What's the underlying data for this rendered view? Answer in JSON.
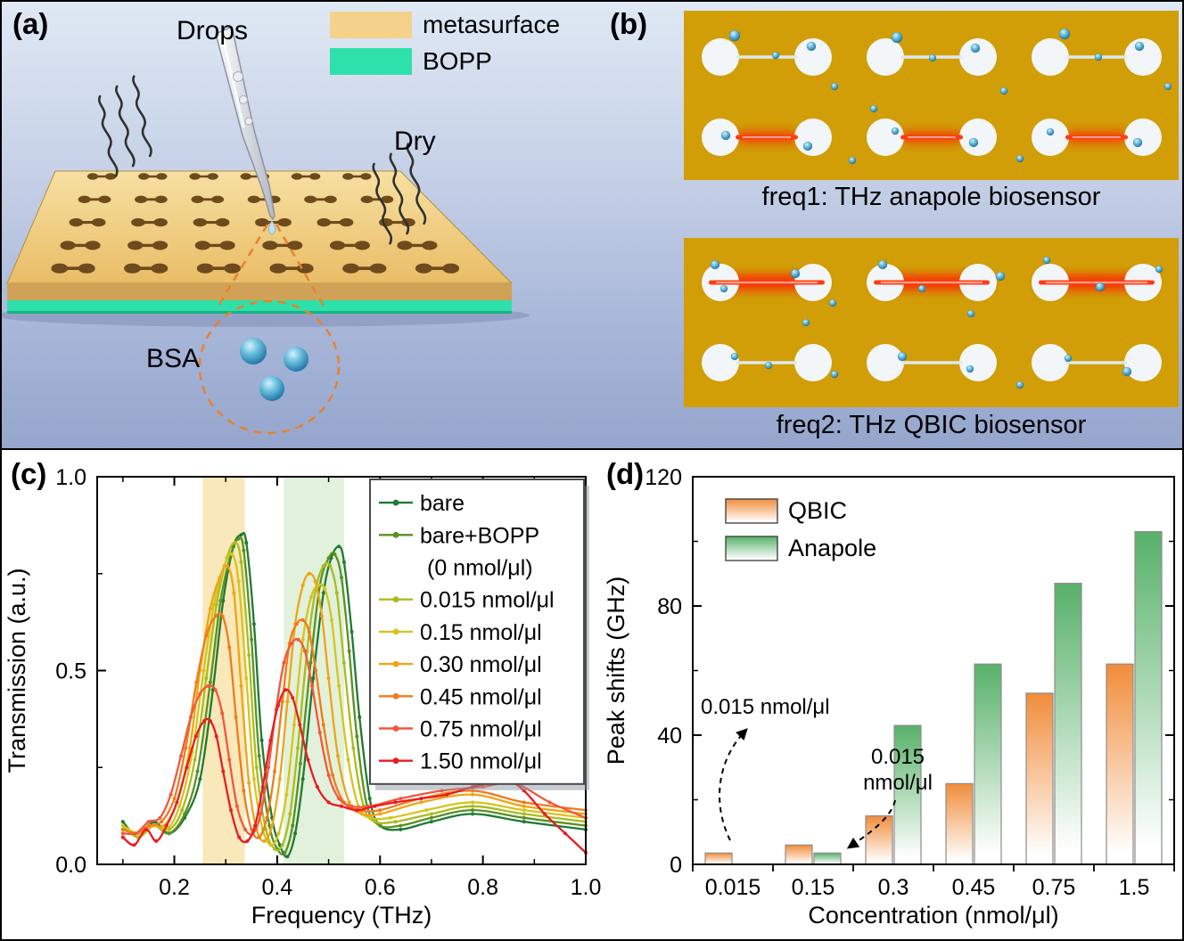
{
  "panel_a": {
    "label": "(a)",
    "drops": "Drops",
    "dry": "Dry",
    "bsa": "BSA",
    "legend": [
      {
        "label": "metasurface",
        "color": "#f4d28c"
      },
      {
        "label": "BOPP",
        "color": "#2ee0aa"
      }
    ]
  },
  "panel_b": {
    "label": "(b)",
    "caption_anapole": "freq1: THz anapole biosensor",
    "caption_qbic": "freq2: THz QBIC biosensor"
  },
  "panel_c": {
    "label": "(c)"
  },
  "panel_d": {
    "label": "(d)"
  },
  "chart_data": [
    {
      "id": "transmission-spectra",
      "type": "line",
      "xlabel": "Frequency (THz)",
      "ylabel": "Transmission (a.u.)",
      "xlim": [
        0.05,
        1.0
      ],
      "ylim": [
        0.0,
        1.0
      ],
      "xticks": [
        0.2,
        0.4,
        0.6,
        0.8,
        1.0
      ],
      "xtick_labels": [
        "0.2",
        "0.4",
        "0.6",
        "0.8",
        "1.0"
      ],
      "xminor": [
        0.1,
        0.3,
        0.5,
        0.7,
        0.9
      ],
      "yticks": [
        0.0,
        0.5,
        1.0
      ],
      "ytick_labels": [
        "0.0",
        "0.5",
        "1.0"
      ],
      "yminor": [
        0.25,
        0.75
      ],
      "bands": [
        {
          "x0": 0.255,
          "x1": 0.337,
          "color": "#f5d98a",
          "opacity": 0.6
        },
        {
          "x0": 0.413,
          "x1": 0.53,
          "color": "#cfe7c5",
          "opacity": 0.6
        }
      ],
      "series": [
        {
          "name": "bare",
          "color": "#1f7a33",
          "x": [
            0.1,
            0.13,
            0.16,
            0.19,
            0.22,
            0.25,
            0.275,
            0.295,
            0.315,
            0.33,
            0.34,
            0.355,
            0.37,
            0.39,
            0.405,
            0.42,
            0.435,
            0.45,
            0.47,
            0.49,
            0.505,
            0.52,
            0.53,
            0.545,
            0.56,
            0.58,
            0.6,
            0.64,
            0.7,
            0.78,
            0.88,
            1.0
          ],
          "y": [
            0.11,
            0.07,
            0.11,
            0.08,
            0.12,
            0.22,
            0.45,
            0.68,
            0.82,
            0.85,
            0.83,
            0.62,
            0.32,
            0.12,
            0.05,
            0.02,
            0.08,
            0.22,
            0.48,
            0.7,
            0.79,
            0.82,
            0.78,
            0.6,
            0.38,
            0.17,
            0.1,
            0.09,
            0.11,
            0.13,
            0.11,
            0.09
          ]
        },
        {
          "name": "bare+BOPP",
          "name2": "(0 nmol/μl)",
          "color": "#5a9021",
          "x": [
            0.1,
            0.13,
            0.16,
            0.19,
            0.22,
            0.245,
            0.27,
            0.29,
            0.31,
            0.325,
            0.335,
            0.35,
            0.365,
            0.385,
            0.4,
            0.415,
            0.43,
            0.445,
            0.465,
            0.483,
            0.5,
            0.512,
            0.525,
            0.54,
            0.555,
            0.575,
            0.6,
            0.64,
            0.7,
            0.78,
            0.88,
            1.0
          ],
          "y": [
            0.1,
            0.07,
            0.1,
            0.08,
            0.13,
            0.24,
            0.47,
            0.68,
            0.8,
            0.84,
            0.81,
            0.58,
            0.28,
            0.1,
            0.04,
            0.03,
            0.1,
            0.26,
            0.52,
            0.72,
            0.79,
            0.8,
            0.74,
            0.55,
            0.33,
            0.15,
            0.1,
            0.1,
            0.12,
            0.14,
            0.12,
            0.1
          ]
        },
        {
          "name": "0.015 nmol/μl",
          "color": "#a9bc1f",
          "x": [
            0.1,
            0.13,
            0.16,
            0.19,
            0.215,
            0.24,
            0.262,
            0.282,
            0.302,
            0.318,
            0.33,
            0.345,
            0.36,
            0.378,
            0.395,
            0.41,
            0.425,
            0.44,
            0.458,
            0.475,
            0.49,
            0.503,
            0.516,
            0.53,
            0.548,
            0.568,
            0.59,
            0.63,
            0.7,
            0.78,
            0.88,
            1.0
          ],
          "y": [
            0.1,
            0.07,
            0.1,
            0.09,
            0.14,
            0.27,
            0.48,
            0.67,
            0.79,
            0.83,
            0.78,
            0.54,
            0.25,
            0.09,
            0.04,
            0.05,
            0.13,
            0.3,
            0.55,
            0.71,
            0.77,
            0.77,
            0.7,
            0.52,
            0.3,
            0.15,
            0.11,
            0.11,
            0.13,
            0.15,
            0.13,
            0.11
          ]
        },
        {
          "name": "0.15 nmol/μl",
          "color": "#d6c41a",
          "x": [
            0.1,
            0.13,
            0.16,
            0.185,
            0.21,
            0.235,
            0.257,
            0.277,
            0.297,
            0.312,
            0.325,
            0.34,
            0.355,
            0.372,
            0.388,
            0.403,
            0.418,
            0.433,
            0.45,
            0.466,
            0.48,
            0.493,
            0.506,
            0.52,
            0.538,
            0.558,
            0.58,
            0.62,
            0.69,
            0.78,
            0.88,
            1.0
          ],
          "y": [
            0.1,
            0.08,
            0.1,
            0.09,
            0.15,
            0.29,
            0.5,
            0.67,
            0.77,
            0.8,
            0.73,
            0.48,
            0.22,
            0.09,
            0.05,
            0.08,
            0.18,
            0.36,
            0.58,
            0.69,
            0.72,
            0.71,
            0.63,
            0.46,
            0.27,
            0.15,
            0.12,
            0.12,
            0.14,
            0.16,
            0.14,
            0.12
          ]
        },
        {
          "name": "0.30 nmol/μl",
          "color": "#efa415",
          "x": [
            0.1,
            0.13,
            0.155,
            0.18,
            0.205,
            0.23,
            0.25,
            0.27,
            0.288,
            0.303,
            0.316,
            0.33,
            0.345,
            0.36,
            0.375,
            0.39,
            0.405,
            0.42,
            0.435,
            0.45,
            0.462,
            0.474,
            0.487,
            0.5,
            0.518,
            0.54,
            0.565,
            0.6,
            0.68,
            0.78,
            0.88,
            1.0
          ],
          "y": [
            0.09,
            0.08,
            0.1,
            0.1,
            0.16,
            0.3,
            0.5,
            0.66,
            0.74,
            0.77,
            0.7,
            0.46,
            0.21,
            0.09,
            0.06,
            0.1,
            0.22,
            0.42,
            0.62,
            0.72,
            0.75,
            0.73,
            0.64,
            0.48,
            0.28,
            0.16,
            0.13,
            0.13,
            0.16,
            0.18,
            0.15,
            0.13
          ]
        },
        {
          "name": "0.45 nmol/μl",
          "color": "#f07b18",
          "x": [
            0.1,
            0.125,
            0.15,
            0.175,
            0.2,
            0.222,
            0.243,
            0.262,
            0.28,
            0.294,
            0.307,
            0.32,
            0.335,
            0.35,
            0.365,
            0.38,
            0.395,
            0.41,
            0.424,
            0.438,
            0.45,
            0.462,
            0.475,
            0.49,
            0.508,
            0.53,
            0.558,
            0.6,
            0.68,
            0.78,
            0.88,
            1.0
          ],
          "y": [
            0.09,
            0.08,
            0.1,
            0.11,
            0.17,
            0.3,
            0.47,
            0.59,
            0.64,
            0.64,
            0.56,
            0.38,
            0.19,
            0.09,
            0.07,
            0.12,
            0.24,
            0.42,
            0.57,
            0.62,
            0.63,
            0.6,
            0.5,
            0.36,
            0.23,
            0.16,
            0.14,
            0.14,
            0.17,
            0.19,
            0.16,
            0.14
          ]
        },
        {
          "name": "0.75 nmol/μl",
          "color": "#f2573b",
          "x": [
            0.1,
            0.125,
            0.15,
            0.172,
            0.193,
            0.213,
            0.232,
            0.25,
            0.266,
            0.28,
            0.293,
            0.307,
            0.322,
            0.338,
            0.353,
            0.368,
            0.383,
            0.398,
            0.413,
            0.428,
            0.441,
            0.454,
            0.468,
            0.483,
            0.5,
            0.52,
            0.545,
            0.58,
            0.64,
            0.72,
            0.8,
            0.86,
            0.93,
            1.0
          ],
          "y": [
            0.08,
            0.08,
            0.11,
            0.12,
            0.18,
            0.28,
            0.38,
            0.44,
            0.46,
            0.45,
            0.39,
            0.27,
            0.15,
            0.09,
            0.08,
            0.13,
            0.25,
            0.4,
            0.52,
            0.57,
            0.58,
            0.55,
            0.46,
            0.34,
            0.23,
            0.17,
            0.15,
            0.15,
            0.17,
            0.19,
            0.2,
            0.21,
            0.16,
            0.12
          ]
        },
        {
          "name": "1.50 nmol/μl",
          "color": "#e91c21",
          "x": [
            0.1,
            0.122,
            0.145,
            0.165,
            0.185,
            0.205,
            0.224,
            0.242,
            0.258,
            0.27,
            0.282,
            0.295,
            0.31,
            0.326,
            0.342,
            0.357,
            0.372,
            0.387,
            0.402,
            0.416,
            0.43,
            0.444,
            0.46,
            0.478,
            0.5,
            0.525,
            0.555,
            0.59,
            0.63,
            0.68,
            0.73,
            0.78,
            0.815,
            0.845,
            0.88,
            0.92,
            0.96,
            1.0
          ],
          "y": [
            0.07,
            0.05,
            0.09,
            0.06,
            0.1,
            0.16,
            0.25,
            0.33,
            0.37,
            0.37,
            0.33,
            0.24,
            0.14,
            0.07,
            0.06,
            0.1,
            0.2,
            0.32,
            0.41,
            0.45,
            0.43,
            0.36,
            0.27,
            0.2,
            0.16,
            0.15,
            0.14,
            0.15,
            0.16,
            0.17,
            0.18,
            0.2,
            0.21,
            0.22,
            0.19,
            0.13,
            0.08,
            0.03
          ]
        }
      ]
    },
    {
      "id": "peak-shifts",
      "type": "bar",
      "xlabel": "Concentration (nmol/μl)",
      "ylabel": "Peak shifts (GHz)",
      "ylim": [
        0,
        120
      ],
      "yticks": [
        0,
        40,
        80,
        120
      ],
      "ytick_labels": [
        "0",
        "40",
        "80",
        "120"
      ],
      "yminor": [
        20,
        60,
        100
      ],
      "categories": [
        "0.015",
        "0.15",
        "0.3",
        "0.45",
        "0.75",
        "1.5"
      ],
      "series": [
        {
          "name": "QBIC",
          "color": "#f18c3a",
          "values": [
            3.5,
            6,
            15,
            25,
            53,
            62
          ]
        },
        {
          "name": "Anapole",
          "color": "#57b169",
          "values": [
            0,
            3.5,
            43,
            62,
            87,
            103
          ]
        }
      ],
      "annotations": [
        {
          "lines": [
            "0.015 nmol/μl"
          ]
        },
        {
          "lines": [
            "0.015",
            "nmol/μl"
          ]
        }
      ]
    }
  ]
}
